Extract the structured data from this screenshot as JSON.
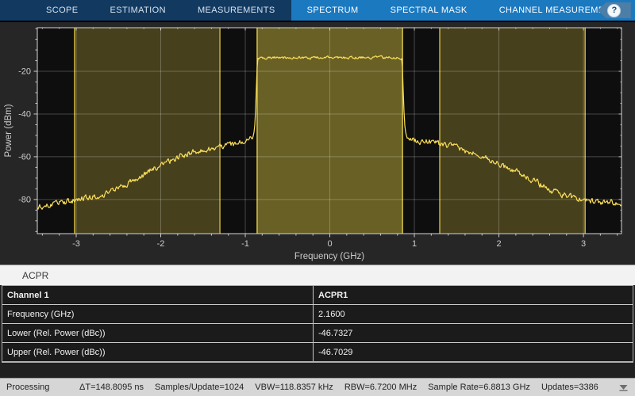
{
  "toolbar": {
    "tabs": [
      {
        "label": "SCOPE",
        "highlighted": false
      },
      {
        "label": "ESTIMATION",
        "highlighted": false
      },
      {
        "label": "MEASUREMENTS",
        "highlighted": false
      },
      {
        "label": "SPECTRUM",
        "highlighted": true
      },
      {
        "label": "SPECTRAL MASK",
        "highlighted": true
      },
      {
        "label": "CHANNEL MEASUREMENTS",
        "highlighted": true
      }
    ],
    "help_label": "?"
  },
  "chart_data": {
    "type": "line",
    "title": "",
    "xlabel": "Frequency (GHz)",
    "ylabel": "Power (dBm)",
    "xlim": [
      -3.46,
      3.45
    ],
    "ylim": [
      -96,
      0.4
    ],
    "xticks": [
      -3,
      -2,
      -1,
      0,
      1,
      2,
      3
    ],
    "yticks": [
      -20,
      -40,
      -60,
      -80
    ],
    "minor_x_step": 0.2,
    "minor_y_step": 5,
    "grid": true,
    "bands": [
      {
        "role": "adjacent-lower-channel",
        "center_ghz": -2.16,
        "range_ghz": [
          -3.02,
          -1.3
        ]
      },
      {
        "role": "main-channel",
        "center_ghz": 0.0,
        "range_ghz": [
          -0.86,
          0.86
        ]
      },
      {
        "role": "adjacent-upper-channel",
        "center_ghz": 2.16,
        "range_ghz": [
          1.3,
          3.02
        ]
      }
    ],
    "series": [
      {
        "name": "spectrum-trace",
        "plateau_dbm": -13.5,
        "noise_floor_dbm": -83,
        "envelope_points": [
          [
            -3.46,
            -83.5
          ],
          [
            -3.3,
            -82.6
          ],
          [
            -3.15,
            -81.4
          ],
          [
            -3.0,
            -80.2
          ],
          [
            -2.85,
            -79.2
          ],
          [
            -2.7,
            -78.0
          ],
          [
            -2.55,
            -75.5
          ],
          [
            -2.4,
            -72.5
          ],
          [
            -2.25,
            -69.5
          ],
          [
            -2.1,
            -66.0
          ],
          [
            -1.95,
            -63.0
          ],
          [
            -1.8,
            -60.3
          ],
          [
            -1.65,
            -58.2
          ],
          [
            -1.5,
            -56.8
          ],
          [
            -1.35,
            -55.8
          ],
          [
            -1.2,
            -54.6
          ],
          [
            -1.05,
            -53.4
          ],
          [
            -0.97,
            -52.6
          ],
          [
            -0.93,
            -51.8
          ],
          [
            -0.9,
            -49.5
          ],
          [
            -0.885,
            -44.0
          ],
          [
            -0.874,
            -34.0
          ],
          [
            -0.866,
            -24.0
          ],
          [
            -0.858,
            -16.5
          ],
          [
            -0.85,
            -13.9
          ],
          [
            -0.6,
            -13.6
          ],
          [
            -0.3,
            -13.7
          ],
          [
            0.0,
            -13.5
          ],
          [
            0.3,
            -13.6
          ],
          [
            0.6,
            -13.5
          ],
          [
            0.85,
            -13.9
          ],
          [
            0.857,
            -16.5
          ],
          [
            0.865,
            -25.0
          ],
          [
            0.873,
            -35.0
          ],
          [
            0.884,
            -44.5
          ],
          [
            0.9,
            -49.5
          ],
          [
            0.93,
            -51.5
          ],
          [
            0.97,
            -52.3
          ],
          [
            1.1,
            -52.9
          ],
          [
            1.25,
            -53.4
          ],
          [
            1.4,
            -54.6
          ],
          [
            1.55,
            -56.3
          ],
          [
            1.7,
            -58.4
          ],
          [
            1.85,
            -60.8
          ],
          [
            2.0,
            -63.3
          ],
          [
            2.15,
            -66.0
          ],
          [
            2.3,
            -68.8
          ],
          [
            2.45,
            -72.0
          ],
          [
            2.6,
            -75.5
          ],
          [
            2.75,
            -77.8
          ],
          [
            2.9,
            -79.4
          ],
          [
            3.05,
            -80.5
          ],
          [
            3.2,
            -81.1
          ],
          [
            3.45,
            -81.8
          ]
        ]
      }
    ]
  },
  "acpr": {
    "title": "ACPR",
    "table": {
      "headers": [
        "Channel 1",
        "ACPR1"
      ],
      "rows": [
        [
          "Frequency (GHz)",
          "2.1600"
        ],
        [
          "Lower (Rel. Power (dBc))",
          "-46.7327"
        ],
        [
          "Upper (Rel. Power (dBc))",
          "-46.7029"
        ]
      ]
    }
  },
  "status_bar": {
    "state": "Processing",
    "items": [
      "ΔT=148.8095 ns",
      "Samples/Update=1024",
      "VBW=118.8357 kHz",
      "RBW=6.7200 MHz",
      "Sample Rate=6.8813 GHz",
      "Updates=3386"
    ]
  },
  "colors": {
    "toolbar_navy": "#123a61",
    "toolbar_highlight_blue": "#1b79c0",
    "plot_outer_bg": "#262626",
    "plot_bg": "#0e0e0e",
    "trace_yellow": "#fbdf5b",
    "band_edge_yellow": "#dcc344",
    "main_band_edge_yellow": "#eed84e",
    "grid_line": "rgba(255,255,255,0.24)",
    "axis_border": "#d4d4d4",
    "tick_label": "#cccccc",
    "table_bg": "#1b1b1b",
    "status_bg": "#d6d6d6"
  }
}
